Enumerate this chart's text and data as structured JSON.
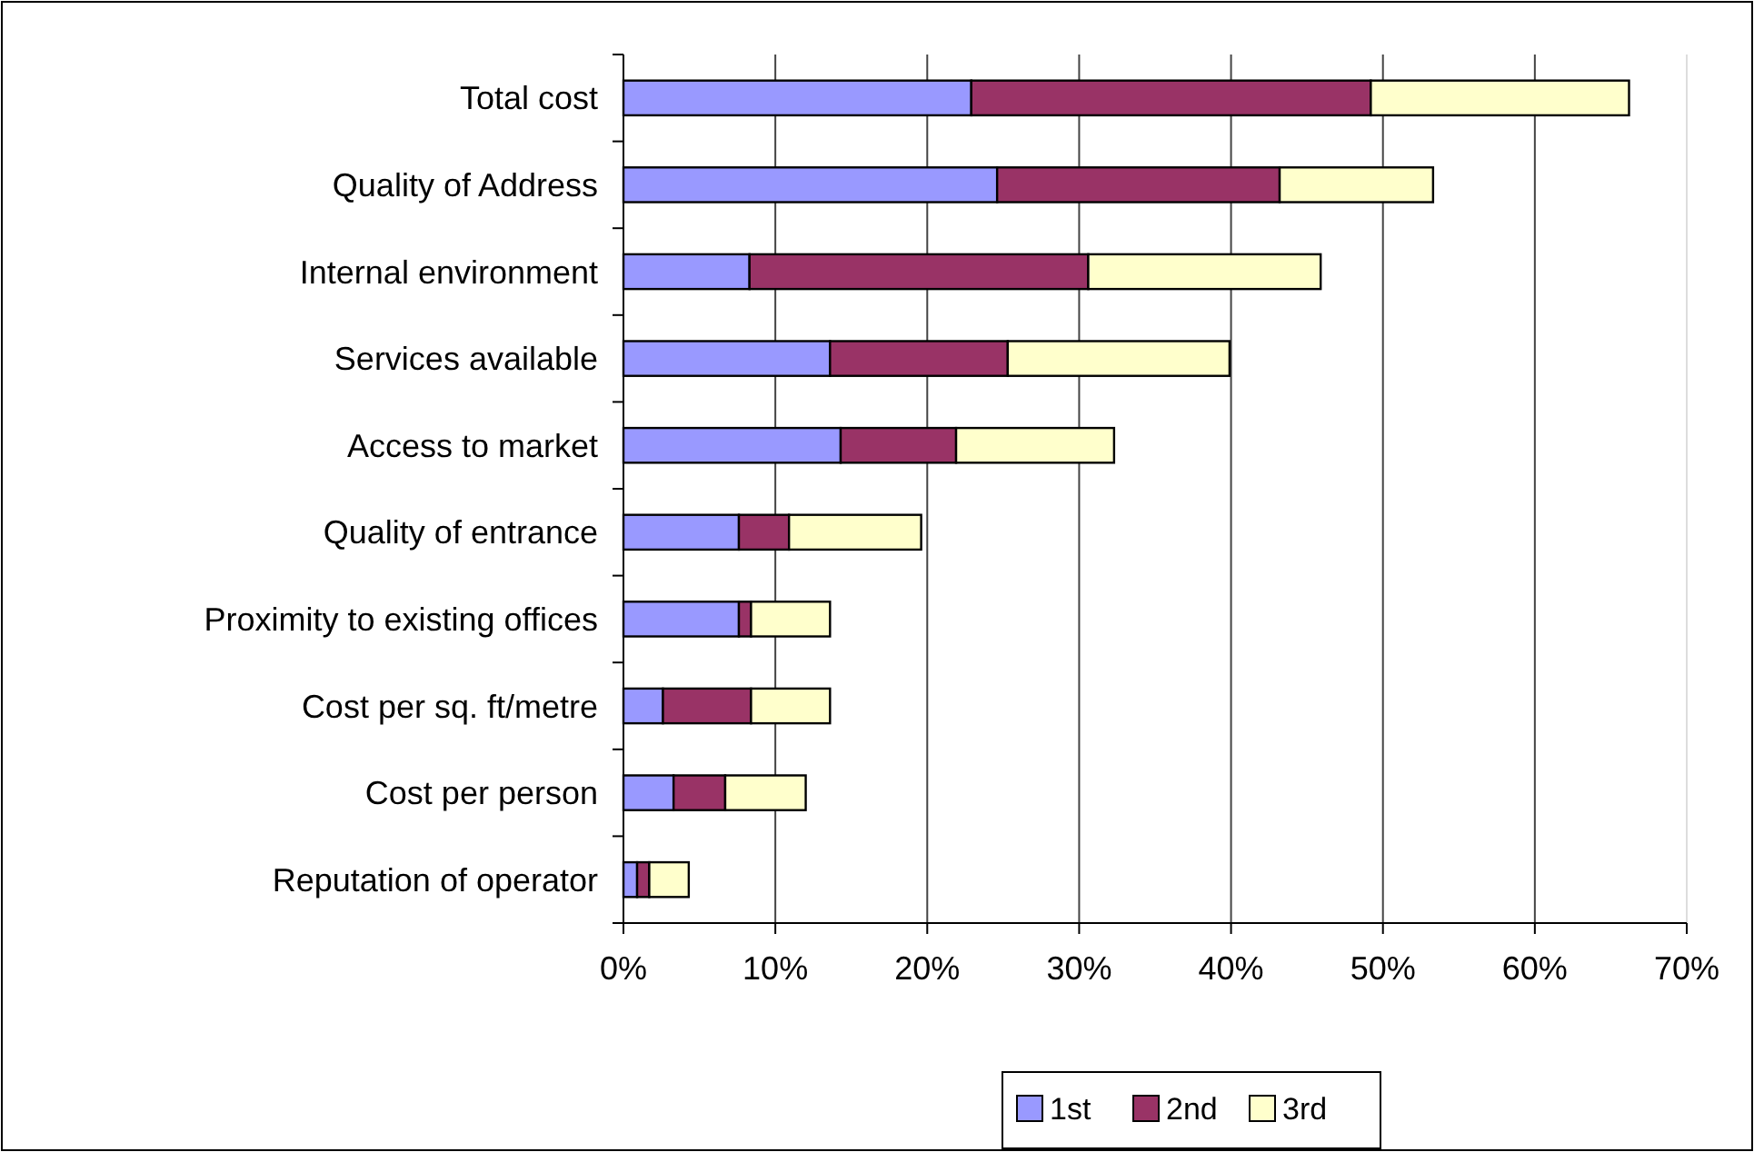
{
  "chart_data": {
    "type": "bar",
    "orientation": "horizontal",
    "stacked": true,
    "categories": [
      "Total cost",
      "Quality of Address",
      "Internal environment",
      "Services available",
      "Access to market",
      "Quality of entrance",
      "Proximity to existing offices",
      "Cost per sq. ft/metre",
      "Cost per person",
      "Reputation of operator"
    ],
    "series": [
      {
        "name": "1st",
        "color": "#9999ff",
        "values": [
          22.9,
          24.6,
          8.3,
          13.6,
          14.3,
          7.6,
          7.6,
          2.6,
          3.3,
          0.9
        ]
      },
      {
        "name": "2nd",
        "color": "#993366",
        "values": [
          26.3,
          18.6,
          22.3,
          11.7,
          7.6,
          3.3,
          0.8,
          5.8,
          3.4,
          0.8
        ]
      },
      {
        "name": "3rd",
        "color": "#ffffcc",
        "values": [
          17.0,
          10.1,
          15.3,
          14.6,
          10.4,
          8.7,
          5.2,
          5.2,
          5.3,
          2.6
        ]
      }
    ],
    "xlim": [
      0,
      70
    ],
    "xticks": [
      {
        "value": 0,
        "label": "0%"
      },
      {
        "value": 10,
        "label": "10%"
      },
      {
        "value": 20,
        "label": "20%"
      },
      {
        "value": 30,
        "label": "30%"
      },
      {
        "value": 40,
        "label": "40%"
      },
      {
        "value": 50,
        "label": "50%"
      },
      {
        "value": 60,
        "label": "60%"
      },
      {
        "value": 70,
        "label": "70%"
      }
    ],
    "grid": "x",
    "legend": "bottom"
  }
}
